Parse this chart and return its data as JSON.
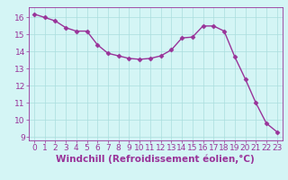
{
  "x": [
    0,
    1,
    2,
    3,
    4,
    5,
    6,
    7,
    8,
    9,
    10,
    11,
    12,
    13,
    14,
    15,
    16,
    17,
    18,
    19,
    20,
    21,
    22,
    23
  ],
  "y": [
    16.2,
    16.0,
    15.8,
    15.4,
    15.2,
    15.2,
    14.4,
    13.9,
    13.75,
    13.6,
    13.55,
    13.6,
    13.75,
    14.1,
    14.8,
    14.85,
    15.5,
    15.5,
    15.2,
    13.7,
    12.4,
    11.0,
    9.8,
    9.3
  ],
  "line_color": "#993399",
  "marker": "D",
  "markersize": 2.5,
  "linewidth": 1.0,
  "background_color": "#d4f5f5",
  "grid_color": "#aadddd",
  "xlabel": "Windchill (Refroidissement éolien,°C)",
  "xlabel_color": "#993399",
  "tick_color": "#993399",
  "label_color": "#993399",
  "ylim": [
    8.8,
    16.6
  ],
  "xlim": [
    -0.5,
    23.5
  ],
  "yticks": [
    9,
    10,
    11,
    12,
    13,
    14,
    15,
    16
  ],
  "xticks": [
    0,
    1,
    2,
    3,
    4,
    5,
    6,
    7,
    8,
    9,
    10,
    11,
    12,
    13,
    14,
    15,
    16,
    17,
    18,
    19,
    20,
    21,
    22,
    23
  ],
  "tick_fontsize": 6.5,
  "xlabel_fontsize": 7.5
}
